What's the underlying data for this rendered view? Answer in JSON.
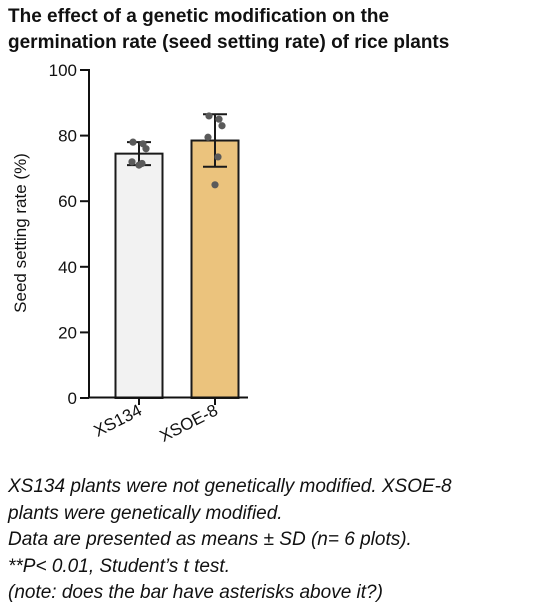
{
  "title_lines": [
    "The effect of a genetic modification on the",
    "germination rate (seed setting rate) of rice plants"
  ],
  "caption_lines": [
    "XS134 plants were not genetically modified. XSOE-8",
    "plants were genetically modified.",
    "Data are presented as means ± SD (n= 6 plots).",
    "**P< 0.01, Student’s t test.",
    "(note: does the bar have asterisks above it?)"
  ],
  "chart_data": {
    "type": "bar",
    "title": "",
    "xlabel": "",
    "ylabel": "Seed  setting rate  (%)",
    "ylim": [
      0,
      100
    ],
    "yticks": [
      0,
      20,
      40,
      60,
      80,
      100
    ],
    "categories": [
      "XS134",
      "XSOE-8"
    ],
    "values": [
      74.5,
      78.5
    ],
    "sd": [
      3.5,
      8.0
    ],
    "points": [
      [
        78,
        77.5,
        76,
        72,
        71.5,
        71
      ],
      [
        86,
        85,
        83,
        79.5,
        73.5,
        65
      ]
    ],
    "colors": [
      "#f2f2f2",
      "#ebc37d"
    ],
    "bar_edge_color": "#1a1a1a",
    "point_color": "#5a5a5a",
    "grid": false,
    "significance_marker": ""
  }
}
